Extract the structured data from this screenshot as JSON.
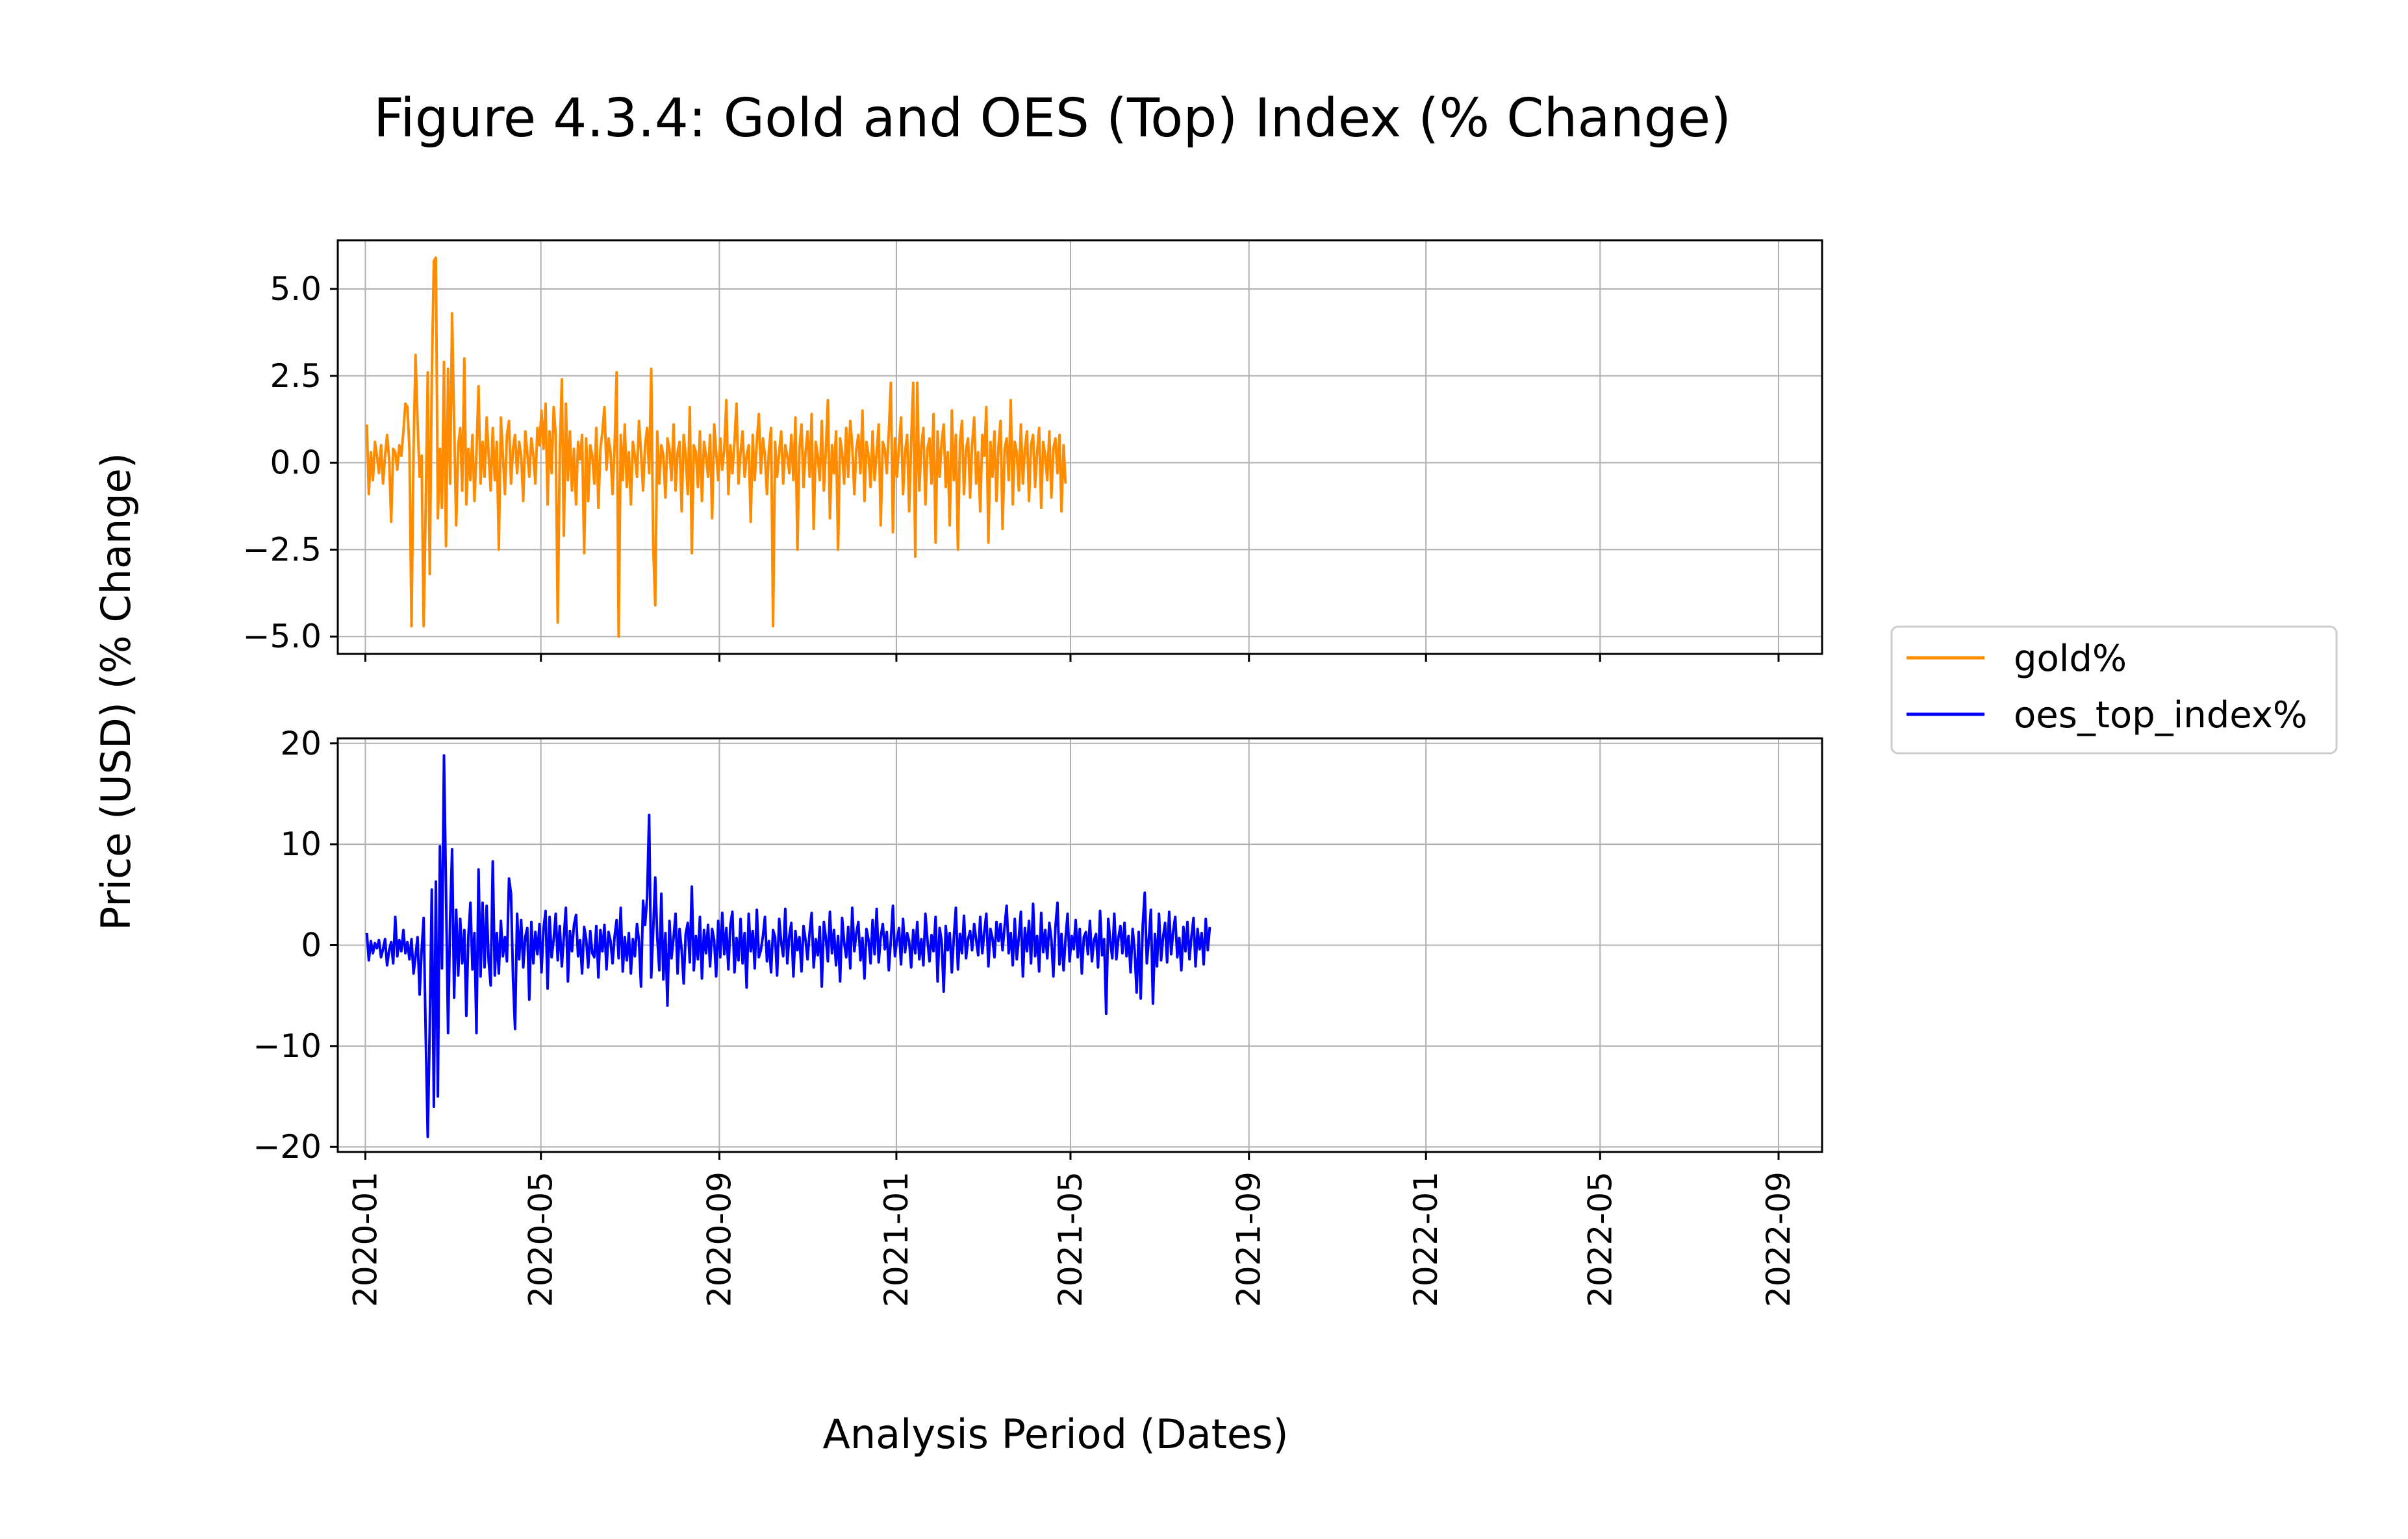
{
  "title": "Figure 4.3.4: Gold and OES (Top) Index (% Change)",
  "xlabel": "Analysis Period (Dates)",
  "ylabel": "Price (USD) (% Change)",
  "chart_data": [
    {
      "type": "line",
      "panel": "top",
      "series": [
        {
          "name": "gold%",
          "color": "#ff8c00",
          "start": "2020-01-02",
          "step_days": 1.4,
          "values": [
            1.1,
            -0.9,
            0.3,
            -0.5,
            0.6,
            0.2,
            -0.3,
            0.5,
            -0.6,
            0.2,
            0.8,
            0.1,
            -1.7,
            0.4,
            0.3,
            -0.2,
            0.5,
            0.2,
            0.9,
            1.7,
            1.6,
            0.4,
            -4.7,
            0.3,
            3.1,
            1.2,
            -0.4,
            0.2,
            -4.7,
            -1.2,
            2.6,
            -3.2,
            2.4,
            5.8,
            5.9,
            -1.6,
            0.4,
            -1.3,
            2.9,
            -2.4,
            2.7,
            -0.6,
            4.3,
            1.1,
            -1.8,
            0.5,
            1.0,
            -0.8,
            3.0,
            -1.2,
            0.4,
            -0.5,
            0.8,
            -1.1,
            0.3,
            2.2,
            -0.6,
            0.6,
            -0.4,
            1.3,
            0.2,
            -0.8,
            1.0,
            -0.5,
            0.6,
            -2.5,
            1.3,
            0.2,
            -0.9,
            0.8,
            1.2,
            -0.6,
            0.4,
            0.8,
            -0.3,
            0.6,
            0.2,
            -1.1,
            0.9,
            0.3,
            -0.4,
            0.7,
            0.2,
            -0.6,
            1.0,
            0.5,
            1.5,
            0.4,
            1.7,
            -1.2,
            0.9,
            -0.3,
            1.6,
            0.8,
            -4.6,
            0.2,
            2.4,
            -2.1,
            1.7,
            -0.5,
            0.9,
            -0.8,
            0.4,
            -1.2,
            0.6,
            0.1,
            0.8,
            -2.6,
            0.7,
            -1.1,
            0.5,
            0.2,
            -0.6,
            1.0,
            -1.3,
            0.4,
            0.9,
            1.6,
            -0.2,
            0.7,
            0.3,
            -0.9,
            0.5,
            2.6,
            -5.0,
            0.8,
            -0.5,
            1.1,
            -0.7,
            0.3,
            -1.2,
            0.6,
            0.2,
            -0.4,
            1.2,
            0.3,
            -0.8,
            0.5,
            1.0,
            -0.3,
            2.7,
            -2.4,
            -4.1,
            0.9,
            -0.6,
            0.5,
            0.2,
            -1.0,
            0.7,
            0.4,
            -0.5,
            1.1,
            -0.8,
            0.3,
            0.6,
            -1.4,
            0.8,
            0.2,
            -0.9,
            1.6,
            -2.6,
            0.5,
            0.3,
            -0.7,
            0.9,
            -1.1,
            0.6,
            0.2,
            -0.4,
            0.8,
            -1.6,
            1.1,
            0.3,
            -0.5,
            0.7,
            -0.2,
            0.4,
            1.8,
            -0.9,
            0.5,
            -0.3,
            0.6,
            1.7,
            -0.6,
            0.3,
            0.9,
            -0.4,
            0.2,
            0.5,
            -1.7,
            0.8,
            -0.5,
            0.6,
            1.4,
            -0.3,
            0.7,
            0.2,
            -0.9,
            0.4,
            1.0,
            -4.7,
            0.6,
            -0.4,
            0.3,
            0.9,
            -0.6,
            0.5,
            0.2,
            -0.3,
            0.8,
            -0.5,
            1.3,
            -2.5,
            0.4,
            1.1,
            -0.7,
            0.3,
            0.9,
            -0.4,
            1.4,
            -1.9,
            0.6,
            0.2,
            -0.5,
            1.2,
            -0.8,
            0.4,
            1.8,
            -1.6,
            0.5,
            -0.3,
            0.9,
            -2.5,
            0.7,
            0.3,
            -0.6,
            1.0,
            -0.4,
            1.2,
            0.5,
            -0.9,
            0.4,
            0.8,
            -0.3,
            1.5,
            -1.1,
            0.6,
            0.2,
            -0.7,
            0.9,
            -0.5,
            0.3,
            1.1,
            -1.8,
            0.6,
            0.4,
            -0.3,
            0.9,
            2.3,
            -2.0,
            0.7,
            -0.4,
            0.5,
            1.3,
            -0.9,
            0.3,
            0.8,
            -1.4,
            0.6,
            2.3,
            -2.7,
            2.3,
            -0.8,
            0.5,
            1.0,
            -1.2,
            0.4,
            0.7,
            -0.6,
            1.4,
            -2.3,
            0.9,
            -0.4,
            0.6,
            1.1,
            -0.7,
            0.3,
            -1.8,
            1.5,
            -0.5,
            0.8,
            -2.5,
            0.6,
            1.2,
            -0.9,
            0.4,
            0.7,
            -1.0,
            0.5,
            1.3,
            -0.6,
            0.3,
            -1.4,
            0.8,
            0.2,
            1.6,
            -2.3,
            0.6,
            -0.4,
            0.9,
            -1.1,
            0.5,
            1.2,
            -1.9,
            0.4,
            0.7,
            -0.5,
            1.8,
            -1.2,
            0.6,
            0.3,
            -0.8,
            1.1,
            -0.6,
            0.4,
            0.9,
            -1.1,
            0.5,
            0.8,
            -0.7,
            0.3,
            1.0,
            -1.3,
            0.6,
            0.2,
            -0.5,
            0.9,
            -1.0,
            0.4,
            0.7,
            -0.3,
            0.8,
            -1.4,
            0.5,
            -0.6
          ]
        }
      ],
      "x_ticks": [
        "2020-01",
        "2020-05",
        "2020-09",
        "2021-01",
        "2021-05",
        "2021-09",
        "2022-01",
        "2022-05",
        "2022-09"
      ],
      "y_ticks": [
        "−5.0",
        "−2.5",
        "0.0",
        "2.5",
        "5.0"
      ],
      "y_tick_values": [
        -5.0,
        -2.5,
        0.0,
        2.5,
        5.0
      ],
      "xlim": [
        "2019-12-13",
        "2022-10-01"
      ],
      "ylim": [
        -5.5,
        6.4
      ],
      "grid": true
    },
    {
      "type": "line",
      "panel": "bottom",
      "series": [
        {
          "name": "oes_top_index%",
          "color": "#0000ff",
          "start": "2020-01-02",
          "step_days": 1.4,
          "values": [
            1.2,
            -1.5,
            0.4,
            -0.8,
            0.2,
            -0.3,
            0.5,
            -1.2,
            -0.4,
            0.6,
            -2.0,
            -0.5,
            0.3,
            -1.8,
            2.8,
            -1.1,
            0.5,
            -0.6,
            1.5,
            -0.8,
            0.3,
            -1.4,
            0.6,
            -2.8,
            -1.1,
            0.8,
            -4.9,
            -0.5,
            2.7,
            -9.0,
            -19.0,
            -8.0,
            5.5,
            -16.0,
            6.3,
            -15.0,
            9.8,
            -2.3,
            18.8,
            5.5,
            -8.7,
            2.5,
            9.5,
            -5.2,
            3.5,
            -3.0,
            2.6,
            -1.8,
            1.5,
            -7.0,
            0.8,
            4.2,
            -2.4,
            1.2,
            -8.7,
            7.5,
            -3.1,
            4.2,
            -2.2,
            3.9,
            -1.6,
            -4.0,
            8.3,
            -3.0,
            1.2,
            -2.8,
            2.4,
            -1.1,
            0.8,
            -1.6,
            6.6,
            5.1,
            -3.3,
            -8.3,
            3.1,
            -1.4,
            2.5,
            -2.2,
            0.8,
            1.7,
            -5.4,
            2.3,
            -1.8,
            1.3,
            -0.9,
            2.1,
            -2.7,
            1.6,
            3.4,
            -4.3,
            2.8,
            -1.2,
            0.6,
            3.1,
            -1.5,
            1.9,
            -2.1,
            0.8,
            3.7,
            -3.6,
            1.4,
            -0.6,
            2.0,
            3.0,
            -1.1,
            0.5,
            -2.8,
            1.8,
            0.6,
            -2.2,
            1.4,
            -0.8,
            -1.2,
            1.9,
            -3.2,
            1.5,
            -0.6,
            2.0,
            -2.4,
            1.3,
            0.4,
            -1.8,
            0.9,
            2.5,
            -1.3,
            3.7,
            -2.6,
            0.8,
            -1.5,
            1.2,
            -2.8,
            0.6,
            -1.1,
            2.1,
            0.4,
            -4.1,
            4.4,
            2.0,
            4.7,
            12.9,
            -3.2,
            1.5,
            6.7,
            0.8,
            -2.5,
            5.1,
            -3.4,
            1.2,
            -6.0,
            2.4,
            -1.3,
            0.7,
            3.1,
            -2.8,
            1.6,
            -0.5,
            -3.8,
            1.1,
            2.2,
            -1.7,
            5.8,
            -2.5,
            0.9,
            -1.4,
            2.8,
            -3.3,
            1.5,
            -0.8,
            2.0,
            -2.1,
            1.6,
            0.5,
            -3.1,
            2.4,
            -1.2,
            3.2,
            -0.9,
            1.7,
            -2.4,
            2.0,
            3.3,
            -2.7,
            0.7,
            -1.5,
            2.6,
            -1.8,
            1.2,
            -4.2,
            3.1,
            -0.6,
            1.4,
            -2.3,
            3.5,
            -1.2,
            -0.5,
            0.9,
            2.8,
            -1.6,
            0.4,
            -2.7,
            1.5,
            0.8,
            -3.0,
            2.6,
            0.3,
            -1.1,
            3.6,
            -1.8,
            0.9,
            2.2,
            -3.1,
            1.4,
            -0.5,
            0.8,
            -2.6,
            1.9,
            0.5,
            -1.4,
            1.3,
            3.2,
            -2.2,
            0.6,
            -1.0,
            1.8,
            -4.1,
            2.3,
            0.7,
            -1.6,
            3.3,
            -0.8,
            1.5,
            -2.0,
            0.9,
            -3.6,
            2.7,
            0.3,
            -1.2,
            1.8,
            -2.3,
            3.7,
            -0.6,
            1.2,
            2.3,
            -1.5,
            0.7,
            -3.3,
            1.6,
            0.5,
            -1.8,
            2.5,
            -0.9,
            3.6,
            -1.7,
            0.8,
            2.1,
            -0.4,
            1.3,
            -2.5,
            0.6,
            3.9,
            -1.1,
            0.5,
            1.7,
            -1.9,
            2.6,
            -0.7,
            1.2,
            0.4,
            -2.2,
            1.5,
            -0.8,
            2.3,
            -1.4,
            0.6,
            -2.0,
            3.1,
            0.5,
            -1.6,
            1.0,
            -0.6,
            2.8,
            -3.6,
            1.7,
            0.4,
            -4.6,
            1.9,
            -0.5,
            1.2,
            -2.7,
            0.8,
            3.7,
            -2.4,
            1.1,
            -0.8,
            2.9,
            -1.3,
            0.6,
            1.4,
            -0.5,
            2.1,
            0.5,
            -1.0,
            2.8,
            -0.8,
            1.3,
            3.1,
            -2.1,
            1.6,
            0.7,
            -1.2,
            2.3,
            0.4,
            2.1,
            -0.5,
            1.9,
            3.9,
            -0.8,
            1.2,
            -2.0,
            2.6,
            -1.4,
            0.8,
            3.3,
            -3.1,
            1.7,
            -0.6,
            2.4,
            -1.8,
            4.1,
            -1.1,
            0.9,
            -2.6,
            3.2,
            -0.7,
            1.5,
            -1.3,
            2.2,
            0.6,
            -3.1,
            1.8,
            4.2,
            -1.9,
            1.1,
            -2.5,
            0.7,
            3.1,
            -1.6,
            0.9,
            -0.4,
            2.5,
            -1.2,
            1.6,
            -2.8,
            0.8,
            1.3,
            -0.9,
            2.4,
            -1.6,
            0.5,
            1.1,
            -2.2,
            3.4,
            -1.0,
            0.6,
            -6.8,
            2.6,
            0.4,
            -1.3,
            3.1,
            -1.4,
            0.7,
            1.9,
            -0.8,
            2.2,
            -1.1,
            0.9,
            -2.7,
            1.6,
            -0.5,
            -4.7,
            1.3,
            -5.3,
            2.0,
            5.2,
            -1.8,
            0.6,
            3.5,
            -5.8,
            1.1,
            -2.1,
            3.1,
            -1.5,
            0.8,
            2.2,
            -1.7,
            3.3,
            -0.9,
            1.4,
            2.8,
            -1.2,
            0.7,
            -2.5,
            1.8,
            -0.6,
            2.3,
            -1.4,
            0.9,
            2.7,
            -2.1,
            1.6,
            -0.4,
            1.2,
            -1.9,
            2.6,
            -0.5,
            1.8
          ]
        }
      ],
      "x_ticks": [
        "2020-01",
        "2020-05",
        "2020-09",
        "2021-01",
        "2021-05",
        "2021-09",
        "2022-01",
        "2022-05",
        "2022-09"
      ],
      "y_ticks": [
        "−20",
        "−10",
        "0",
        "10",
        "20"
      ],
      "y_tick_values": [
        -20,
        -10,
        0,
        10,
        20
      ],
      "xlim": [
        "2019-12-13",
        "2022-10-01"
      ],
      "ylim": [
        -20.5,
        20.5
      ],
      "grid": true
    }
  ],
  "legend": {
    "placement": "right",
    "items": [
      {
        "label": "gold%",
        "color": "#ff8c00"
      },
      {
        "label": "oes_top_index%",
        "color": "#0000ff"
      }
    ]
  }
}
